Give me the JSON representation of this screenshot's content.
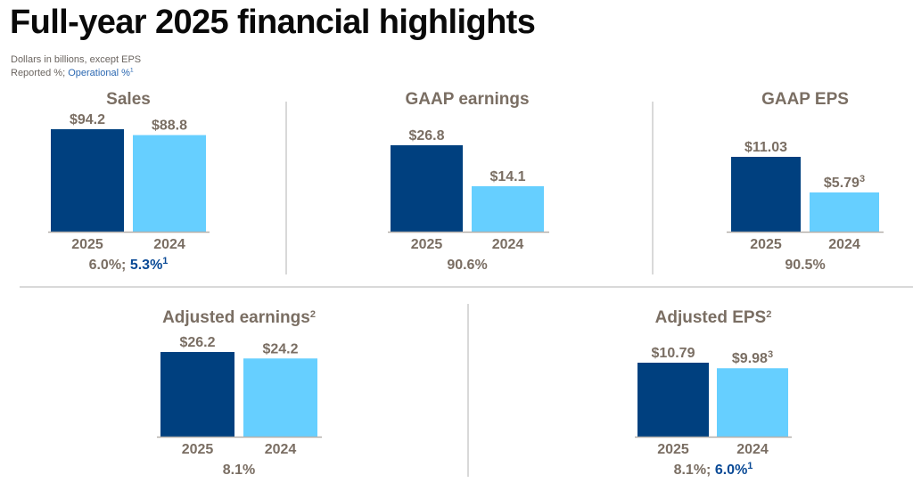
{
  "header": {
    "title": "Full-year 2025 financial highlights",
    "subtitle": "Dollars in billions, except EPS",
    "legend_reported": "Reported %; ",
    "legend_operational": "Operational %",
    "legend_operational_sup": "1"
  },
  "colors": {
    "current_year": "#00407f",
    "prior_year": "#66cfff",
    "text": "#7a6e63",
    "operational": "#0a4a96"
  },
  "chart_data": [
    {
      "type": "bar",
      "title": "Sales",
      "title_sup": "",
      "categories": [
        "2025",
        "2024"
      ],
      "values": [
        94.2,
        88.8
      ],
      "value_labels": [
        "$94.2",
        "$88.8"
      ],
      "value_label_sups": [
        "",
        ""
      ],
      "growth_reported": "6.0%;",
      "growth_operational": "5.3%",
      "growth_operational_sup": "1",
      "unit": "billions USD"
    },
    {
      "type": "bar",
      "title": "GAAP earnings",
      "title_sup": "",
      "categories": [
        "2025",
        "2024"
      ],
      "values": [
        26.8,
        14.1
      ],
      "value_labels": [
        "$26.8",
        "$14.1"
      ],
      "value_label_sups": [
        "",
        ""
      ],
      "growth_reported": "90.6%",
      "growth_operational": "",
      "growth_operational_sup": "",
      "unit": "billions USD"
    },
    {
      "type": "bar",
      "title": "GAAP EPS",
      "title_sup": "",
      "categories": [
        "2025",
        "2024"
      ],
      "values": [
        11.03,
        5.79
      ],
      "value_labels": [
        "$11.03",
        "$5.79"
      ],
      "value_label_sups": [
        "",
        "3"
      ],
      "growth_reported": "90.5%",
      "growth_operational": "",
      "growth_operational_sup": "",
      "unit": "USD per share"
    },
    {
      "type": "bar",
      "title": "Adjusted earnings",
      "title_sup": "2",
      "categories": [
        "2025",
        "2024"
      ],
      "values": [
        26.2,
        24.2
      ],
      "value_labels": [
        "$26.2",
        "$24.2"
      ],
      "value_label_sups": [
        "",
        ""
      ],
      "growth_reported": "8.1%",
      "growth_operational": "",
      "growth_operational_sup": "",
      "unit": "billions USD"
    },
    {
      "type": "bar",
      "title": "Adjusted EPS",
      "title_sup": "2",
      "categories": [
        "2025",
        "2024"
      ],
      "values": [
        10.79,
        9.98
      ],
      "value_labels": [
        "$10.79",
        "$9.98"
      ],
      "value_label_sups": [
        "",
        "3"
      ],
      "growth_reported": "8.1%;",
      "growth_operational": "6.0%",
      "growth_operational_sup": "1",
      "unit": "USD per share"
    }
  ]
}
